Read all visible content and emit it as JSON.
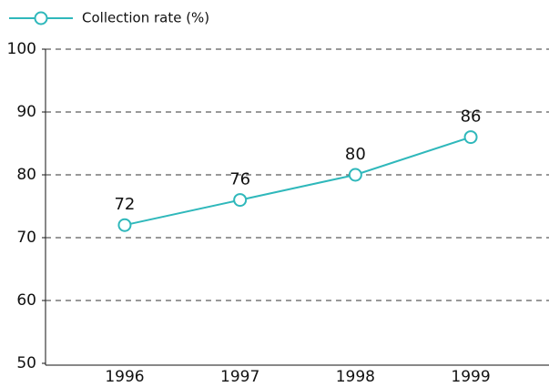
{
  "chart_data": {
    "type": "line",
    "categories": [
      "1996",
      "1997",
      "1998",
      "1999"
    ],
    "series": [
      {
        "name": "Collection rate (%)",
        "color": "#2fb8bb",
        "values": [
          72,
          76,
          80,
          86
        ]
      }
    ],
    "ylim": [
      50,
      100
    ],
    "yticks": [
      50,
      60,
      70,
      80,
      90,
      100
    ],
    "grid": true,
    "legend": "top-left"
  }
}
